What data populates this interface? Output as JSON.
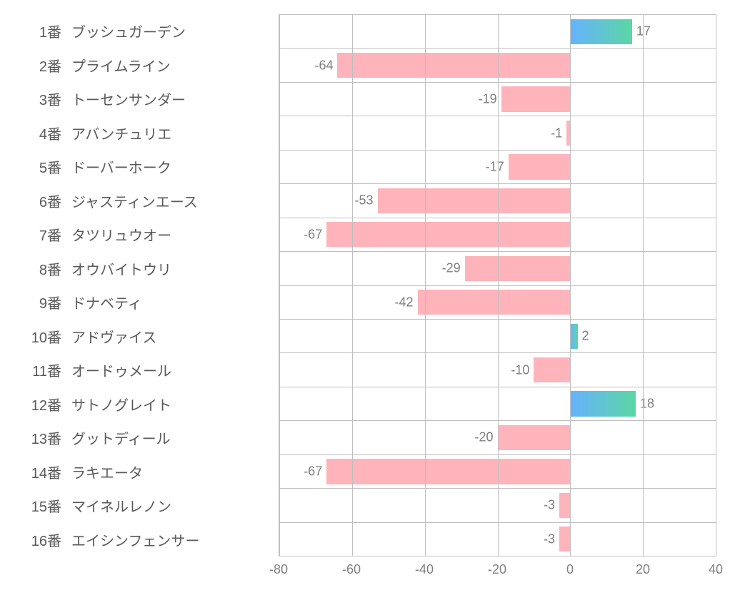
{
  "chart": {
    "type": "bar-horizontal-diverging",
    "xlim": [
      -80,
      40
    ],
    "xtick_step": 20,
    "xticks": [
      -80,
      -60,
      -40,
      -20,
      0,
      20,
      40
    ],
    "background_color": "#ffffff",
    "grid_color": "#bfbfbf",
    "label_color": "#595959",
    "value_label_color": "#7f7f7f",
    "label_fontsize": 20,
    "value_fontsize": 18,
    "tick_fontsize": 18,
    "bar_height_ratio": 0.76,
    "negative_fill": "#ffb3ba",
    "positive_gradient": [
      "#66b3ff",
      "#5bd6a3"
    ],
    "entries": [
      {
        "num": "1番",
        "name": "ブッシュガーデン",
        "value": 17
      },
      {
        "num": "2番",
        "name": "プライムライン",
        "value": -64
      },
      {
        "num": "3番",
        "name": "トーセンサンダー",
        "value": -19
      },
      {
        "num": "4番",
        "name": "アバンチュリエ",
        "value": -1
      },
      {
        "num": "5番",
        "name": "ドーバーホーク",
        "value": -17
      },
      {
        "num": "6番",
        "name": "ジャスティンエース",
        "value": -53
      },
      {
        "num": "7番",
        "name": "タツリュウオー",
        "value": -67
      },
      {
        "num": "8番",
        "name": "オウバイトウリ",
        "value": -29
      },
      {
        "num": "9番",
        "name": "ドナベティ",
        "value": -42
      },
      {
        "num": "10番",
        "name": "アドヴァイス",
        "value": 2
      },
      {
        "num": "11番",
        "name": "オードゥメール",
        "value": -10
      },
      {
        "num": "12番",
        "name": "サトノグレイト",
        "value": 18
      },
      {
        "num": "13番",
        "name": "グットディール",
        "value": -20
      },
      {
        "num": "14番",
        "name": "ラキエータ",
        "value": -67
      },
      {
        "num": "15番",
        "name": "マイネルレノン",
        "value": -3
      },
      {
        "num": "16番",
        "name": "エイシンフェンサー",
        "value": -3
      }
    ]
  }
}
